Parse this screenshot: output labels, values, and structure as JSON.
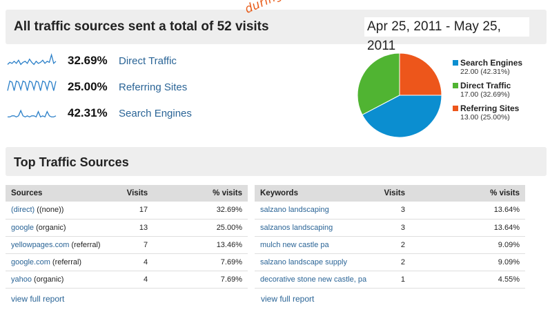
{
  "header": {
    "title": "All traffic sources sent a total of 52 visits",
    "date_range": "Apr 25, 2011 - May 25, 2011",
    "annotation": "during the month of"
  },
  "metrics": [
    {
      "pct": "32.69%",
      "label": "Direct Traffic",
      "sparkline": [
        3,
        5,
        4,
        6,
        4,
        7,
        3,
        5,
        6,
        4,
        8,
        5,
        3,
        6,
        4,
        5,
        7,
        4,
        6,
        5,
        12,
        4,
        6
      ]
    },
    {
      "pct": "25.00%",
      "label": "Referring Sites",
      "sparkline": [
        3,
        12,
        11,
        3,
        12,
        11,
        4,
        12,
        11,
        3,
        12,
        11,
        4,
        12,
        11,
        3,
        12,
        11,
        4,
        12,
        11,
        3,
        12
      ]
    },
    {
      "pct": "42.31%",
      "label": "Search Engines",
      "sparkline": [
        3,
        3,
        4,
        4,
        3,
        4,
        9,
        4,
        3,
        4,
        3,
        4,
        4,
        3,
        8,
        3,
        4,
        3,
        8,
        4,
        3,
        3,
        4
      ]
    }
  ],
  "chart_data": {
    "type": "pie",
    "categories": [
      "Search Engines",
      "Direct Traffic",
      "Referring Sites"
    ],
    "values": [
      22.0,
      17.0,
      13.0
    ],
    "percents": [
      "42.31%",
      "32.69%",
      "25.00%"
    ],
    "colors": [
      "#0b8ed0",
      "#50b432",
      "#ed561b"
    ],
    "legend": [
      {
        "name": "Search Engines",
        "value": "22.00 (42.31%)"
      },
      {
        "name": "Direct Traffic",
        "value": "17.00 (32.69%)"
      },
      {
        "name": "Referring Sites",
        "value": "13.00 (25.00%)"
      }
    ]
  },
  "section_title": "Top Traffic Sources",
  "sources_table": {
    "headers": [
      "Sources",
      "Visits",
      "% visits"
    ],
    "rows": [
      {
        "link": "(direct)",
        "rest": " ((none))",
        "visits": "17",
        "pct": "32.69%"
      },
      {
        "link": "google",
        "rest": " (organic)",
        "visits": "13",
        "pct": "25.00%"
      },
      {
        "link": "yellowpages.com",
        "rest": " (referral)",
        "visits": "7",
        "pct": "13.46%"
      },
      {
        "link": "google.com",
        "rest": " (referral)",
        "visits": "4",
        "pct": "7.69%"
      },
      {
        "link": "yahoo",
        "rest": " (organic)",
        "visits": "4",
        "pct": "7.69%"
      }
    ],
    "view_full": "view full report"
  },
  "keywords_table": {
    "headers": [
      "Keywords",
      "Visits",
      "% visits"
    ],
    "rows": [
      {
        "link": "salzano landscaping",
        "visits": "3",
        "pct": "13.64%"
      },
      {
        "link": "salzanos landscaping",
        "visits": "3",
        "pct": "13.64%"
      },
      {
        "link": "mulch new castle pa",
        "visits": "2",
        "pct": "9.09%"
      },
      {
        "link": "salzano landscape supply",
        "visits": "2",
        "pct": "9.09%"
      },
      {
        "link": "decorative stone new castle, pa",
        "visits": "1",
        "pct": "4.55%"
      }
    ],
    "view_full": "view full report"
  }
}
